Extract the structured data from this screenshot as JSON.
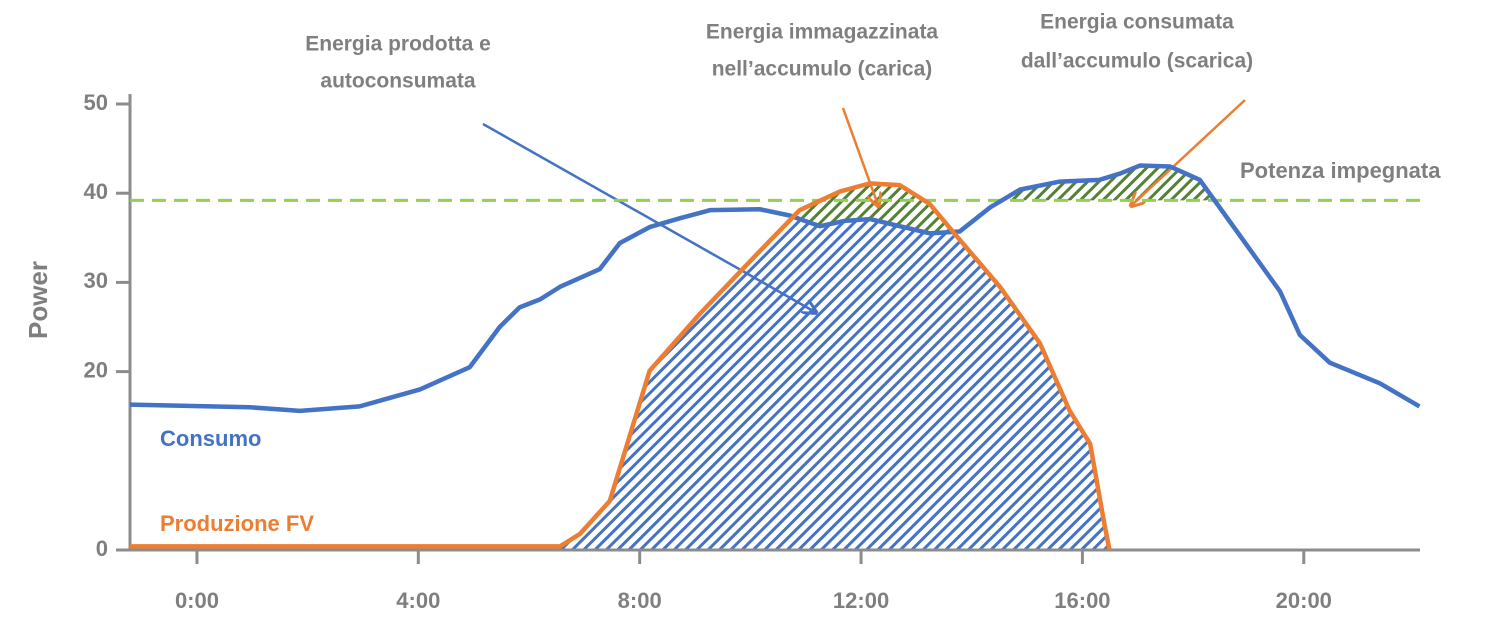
{
  "chart_data": {
    "type": "line",
    "y_label": "Power",
    "xlim": [
      -1.21,
      22.1
    ],
    "xticks": [
      {
        "value": 0,
        "label": "0:00"
      },
      {
        "value": 4,
        "label": "4:00"
      },
      {
        "value": 8,
        "label": "8:00"
      },
      {
        "value": 12,
        "label": "12:00"
      },
      {
        "value": 16,
        "label": "16:00"
      },
      {
        "value": 20,
        "label": "20:00"
      }
    ],
    "ylim": [
      0,
      50
    ],
    "yticks": [
      0,
      20,
      30,
      40,
      50
    ],
    "series": [
      {
        "name": "Consumo",
        "color": "#4472c4",
        "x": [
          -1.21,
          0.96,
          1.86,
          2.94,
          4.03,
          4.93,
          5.47,
          5.83,
          6.2,
          6.56,
          7.28,
          7.64,
          8.18,
          8.73,
          9.27,
          10.17,
          10.71,
          11.26,
          11.71,
          12.16,
          12.7,
          13.24,
          13.78,
          14.33,
          14.87,
          15.59,
          16.31,
          16.68,
          17.04,
          17.58,
          18.12,
          18.84,
          19.57,
          19.93,
          20.47,
          21.37,
          22.09
        ],
        "values": [
          16.3,
          16.0,
          15.6,
          16.1,
          18.0,
          20.5,
          25.0,
          27.2,
          28.1,
          29.5,
          31.5,
          34.4,
          36.2,
          37.2,
          38.1,
          38.2,
          37.5,
          36.3,
          36.9,
          37.1,
          36.3,
          35.5,
          35.7,
          38.4,
          40.4,
          41.3,
          41.5,
          42.2,
          43.1,
          43.0,
          41.5,
          35.3,
          29.0,
          24.1,
          21.0,
          18.7,
          16.1
        ]
      },
      {
        "name": "Produzione FV",
        "color": "#ed7d31",
        "x": [
          -1.21,
          6.56,
          6.92,
          7.46,
          8.18,
          9.09,
          10.17,
          10.89,
          11.62,
          12.16,
          12.7,
          13.24,
          13.78,
          14.51,
          15.23,
          15.77,
          16.14,
          16.4,
          16.49
        ],
        "values": [
          0.4,
          0.4,
          1.8,
          5.5,
          20.1,
          26.5,
          33.5,
          38.1,
          40.2,
          41.1,
          40.9,
          38.8,
          34.8,
          29.5,
          23.2,
          15.6,
          11.9,
          2.8,
          0
        ]
      }
    ],
    "reference_line": {
      "label": "Potenza impegnata",
      "value": 39.2,
      "color": "#92d050"
    },
    "annotations": [
      [
        "Energia prodotta e",
        "autoconsumata"
      ],
      [
        "Energia immagazzinata",
        "nell’accumulo (carica)"
      ],
      [
        "Energia consumata",
        "dall’accumulo (scarica)"
      ]
    ]
  }
}
